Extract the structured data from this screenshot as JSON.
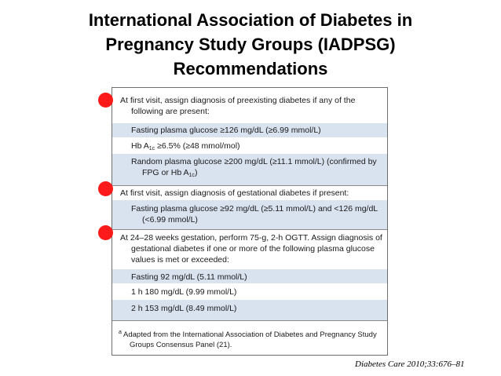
{
  "title_lines": [
    "International Association of Diabetes in",
    "Pregnancy Study Groups (IADPSG)",
    "Recommendations"
  ],
  "sections": [
    {
      "header": "At first visit, assign diagnosis of preexisting diabetes if any of the following are present:",
      "items": [
        {
          "text": "Fasting plasma glucose ≥126 mg/dL (≥6.99 mmol/L)"
        },
        {
          "pre": "Hb A",
          "sub": "1c",
          "post": " ≥6.5% (≥48 mmol/mol)"
        },
        {
          "pre": "Random plasma glucose ≥200 mg/dL (≥11.1 mmol/L) (confirmed by FPG or Hb A",
          "sub": "1c",
          "post": ")"
        }
      ]
    },
    {
      "header": "At first visit, assign diagnosis of gestational diabetes if present:",
      "items": [
        {
          "text": "Fasting plasma glucose ≥92 mg/dL (≥5.11 mmol/L) and <126 mg/dL (<6.99 mmol/L)"
        }
      ]
    },
    {
      "header": "At 24–28 weeks gestation, perform 75-g, 2-h OGTT. Assign diagnosis of gestational diabetes if one or more of the following plasma glucose values is met or exceeded:",
      "items": [
        {
          "text": "Fasting 92 mg/dL (5.11 mmol/L)"
        },
        {
          "text": "1 h 180 mg/dL (9.99 mmol/L)"
        },
        {
          "text": "2 h 153 mg/dL (8.49 mmol/L)"
        }
      ]
    }
  ],
  "footnote": {
    "mark": "a",
    "text": "Adapted from the International Association of Diabetes and Pregnancy Study Groups Consensus Panel (21)."
  },
  "citation": "Diabetes Care 2010;33:676–81",
  "colors": {
    "marker": "#ff1a1a",
    "shaded_row": "#d9e2ef"
  }
}
